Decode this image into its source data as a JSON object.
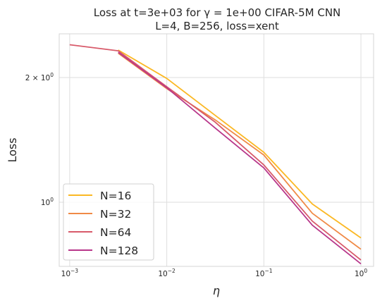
{
  "chart_data": {
    "type": "line",
    "title_lines": [
      "Loss at t=3e+03 for γ = 1e+00 CIFAR-5M CNN",
      "L=4, B=256, loss=xent"
    ],
    "xlabel": "η",
    "ylabel": "Loss",
    "xscale": "log",
    "yscale": "log",
    "xlim": [
      0.00078,
      1.35
    ],
    "ylim": [
      0.7,
      2.55
    ],
    "x_ticks": [
      {
        "value": 0.001,
        "base": "10",
        "exp": "−3"
      },
      {
        "value": 0.01,
        "base": "10",
        "exp": "−2"
      },
      {
        "value": 0.1,
        "base": "10",
        "exp": "−1"
      },
      {
        "value": 1,
        "base": "10",
        "exp": "0"
      }
    ],
    "y_ticks": [
      {
        "value": 1,
        "base": "10",
        "exp": "0",
        "prefix": ""
      },
      {
        "value": 2,
        "base": "10",
        "exp": "0",
        "prefix": "2 × "
      }
    ],
    "grid": true,
    "legend_position": "lower-left",
    "series": [
      {
        "name": "N=16",
        "color": "#fbb824",
        "x": [
          0.00316,
          0.01,
          0.0316,
          0.1,
          0.316,
          1
        ],
        "y": [
          2.33,
          1.99,
          1.62,
          1.32,
          0.99,
          0.82
        ]
      },
      {
        "name": "N=32",
        "color": "#f08a46",
        "x": [
          0.00316,
          0.01,
          0.0316,
          0.1,
          0.316,
          1
        ],
        "y": [
          2.29,
          1.88,
          1.58,
          1.3,
          0.94,
          0.77
        ]
      },
      {
        "name": "N=64",
        "color": "#d85a6a",
        "x": [
          0.001,
          0.00316,
          0.01,
          0.0316,
          0.1,
          0.316,
          1
        ],
        "y": [
          2.4,
          2.32,
          1.9,
          1.56,
          1.23,
          0.9,
          0.725
        ]
      },
      {
        "name": "N=128",
        "color": "#b8368a",
        "x": [
          0.00316,
          0.01,
          0.0316,
          0.1,
          0.316,
          1
        ],
        "y": [
          2.3,
          1.89,
          1.51,
          1.21,
          0.88,
          0.71
        ]
      }
    ]
  }
}
